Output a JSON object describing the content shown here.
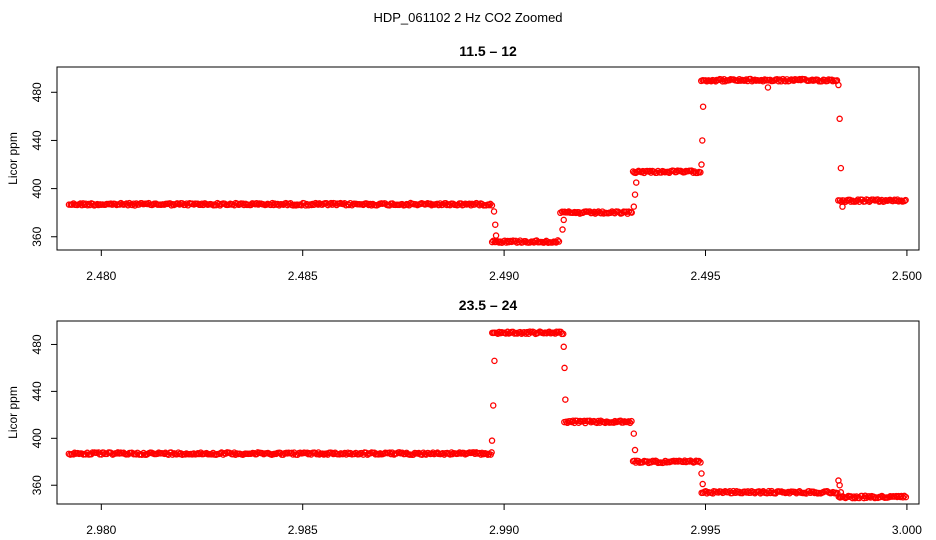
{
  "figure": {
    "title": "HDP_061102  2 Hz CO2 Zoomed"
  },
  "chart_data": [
    {
      "type": "scatter",
      "title": "11.5 – 12",
      "xlabel": "",
      "ylabel": "Licor ppm",
      "xlim": [
        2.4789,
        2.5003
      ],
      "ylim": [
        349,
        501
      ],
      "xticks": [
        "2.480",
        "2.485",
        "2.490",
        "2.495",
        "2.500"
      ],
      "xtick_values": [
        2.48,
        2.485,
        2.49,
        2.495,
        2.5
      ],
      "yticks": [
        "360",
        "400",
        "440",
        "480"
      ],
      "ytick_values": [
        360,
        400,
        440,
        480
      ],
      "grid": false,
      "marker": "open-circle",
      "color": "#ff0000",
      "levels": [
        {
          "x_start": 2.4792,
          "x_end": 2.4897,
          "y": 387
        },
        {
          "x_start": 2.4897,
          "x_end": 2.4914,
          "y": 356
        },
        {
          "x_start": 2.4914,
          "x_end": 2.4932,
          "y": 380
        },
        {
          "x_start": 2.4932,
          "x_end": 2.4949,
          "y": 414
        },
        {
          "x_start": 2.4949,
          "x_end": 2.4983,
          "y": 490
        },
        {
          "x_start": 2.4983,
          "x_end": 2.5,
          "y": 390
        }
      ],
      "transition_points": [
        {
          "x": 2.48975,
          "y": 381
        },
        {
          "x": 2.48978,
          "y": 370
        },
        {
          "x": 2.4898,
          "y": 361
        },
        {
          "x": 2.49145,
          "y": 366
        },
        {
          "x": 2.49148,
          "y": 374
        },
        {
          "x": 2.49322,
          "y": 385
        },
        {
          "x": 2.49325,
          "y": 395
        },
        {
          "x": 2.49328,
          "y": 405
        },
        {
          "x": 2.4949,
          "y": 420
        },
        {
          "x": 2.49492,
          "y": 440
        },
        {
          "x": 2.49494,
          "y": 468
        },
        {
          "x": 2.49655,
          "y": 484
        },
        {
          "x": 2.4983,
          "y": 486
        },
        {
          "x": 2.49833,
          "y": 458
        },
        {
          "x": 2.49836,
          "y": 417
        },
        {
          "x": 2.4984,
          "y": 385
        }
      ]
    },
    {
      "type": "scatter",
      "title": "23.5 – 24",
      "xlabel": "",
      "ylabel": "Licor ppm",
      "xlim": [
        2.9789,
        3.0003
      ],
      "ylim": [
        344,
        500
      ],
      "xticks": [
        "2.980",
        "2.985",
        "2.990",
        "2.995",
        "3.000"
      ],
      "xtick_values": [
        2.98,
        2.985,
        2.99,
        2.995,
        3.0
      ],
      "yticks": [
        "360",
        "400",
        "440",
        "480"
      ],
      "ytick_values": [
        360,
        400,
        440,
        480
      ],
      "grid": false,
      "marker": "open-circle",
      "color": "#ff0000",
      "levels": [
        {
          "x_start": 2.9792,
          "x_end": 2.9897,
          "y": 387
        },
        {
          "x_start": 2.9897,
          "x_end": 2.9915,
          "y": 490
        },
        {
          "x_start": 2.9915,
          "x_end": 2.9932,
          "y": 414
        },
        {
          "x_start": 2.9932,
          "x_end": 2.9949,
          "y": 380
        },
        {
          "x_start": 2.9949,
          "x_end": 2.9983,
          "y": 354
        },
        {
          "x_start": 2.9983,
          "x_end": 3.0,
          "y": 350
        }
      ],
      "transition_points": [
        {
          "x": 2.9897,
          "y": 398
        },
        {
          "x": 2.98973,
          "y": 428
        },
        {
          "x": 2.98976,
          "y": 466
        },
        {
          "x": 2.99148,
          "y": 478
        },
        {
          "x": 2.9915,
          "y": 460
        },
        {
          "x": 2.99152,
          "y": 433
        },
        {
          "x": 2.99322,
          "y": 404
        },
        {
          "x": 2.99325,
          "y": 390
        },
        {
          "x": 2.9949,
          "y": 370
        },
        {
          "x": 2.99493,
          "y": 361
        },
        {
          "x": 2.9983,
          "y": 364
        },
        {
          "x": 2.99833,
          "y": 360
        },
        {
          "x": 2.99836,
          "y": 354
        }
      ]
    }
  ]
}
